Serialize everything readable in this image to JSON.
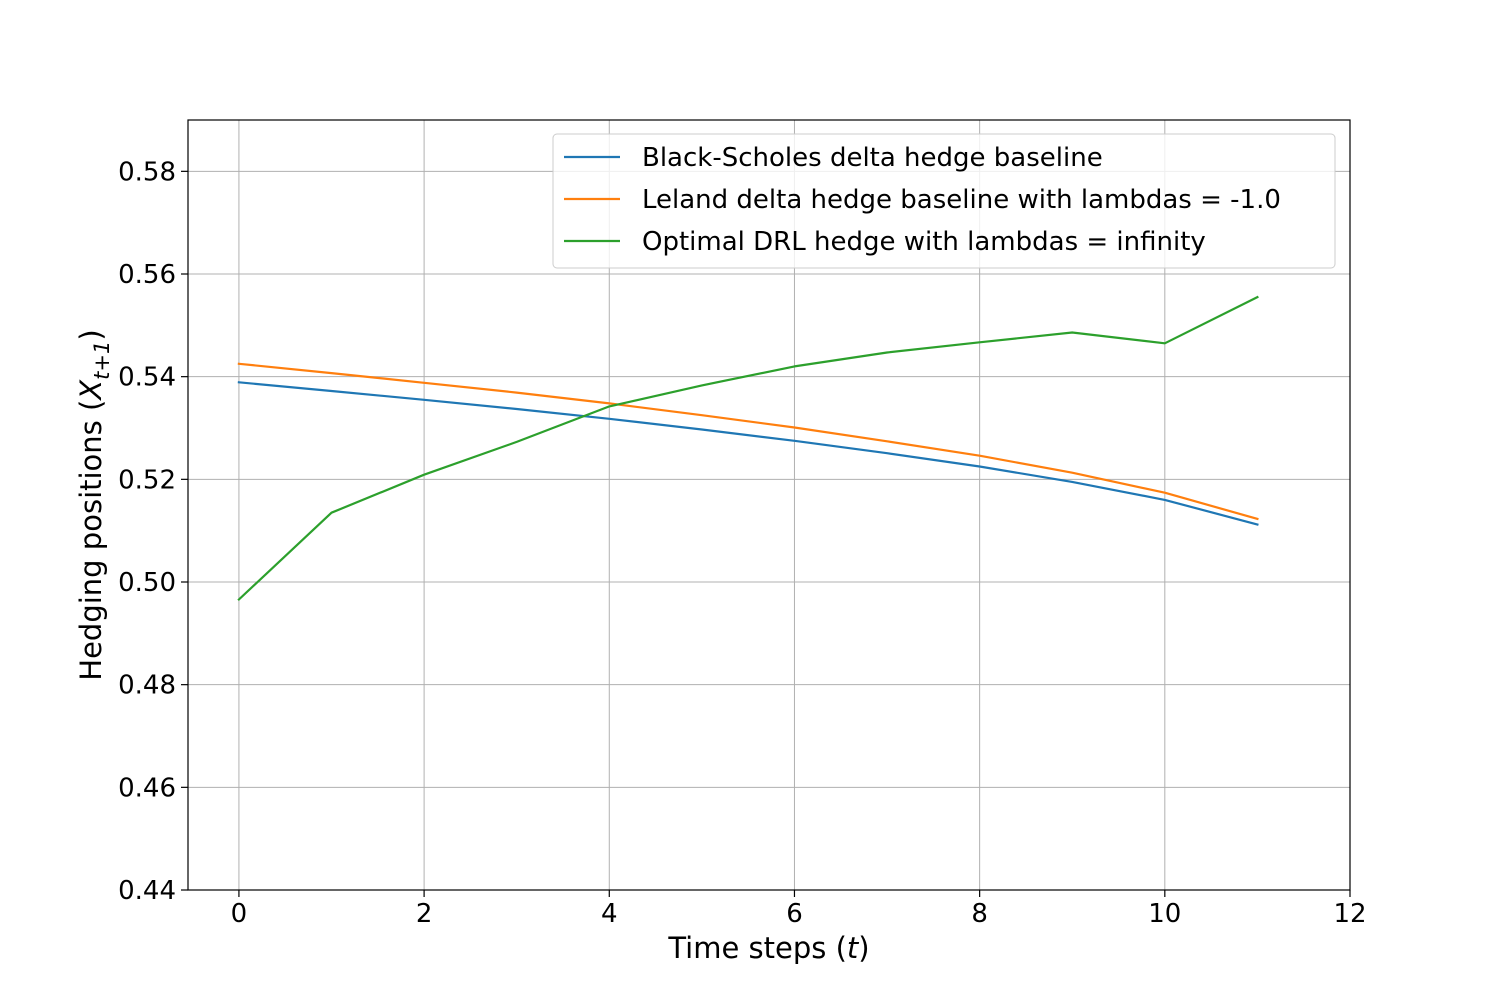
{
  "chart_data": {
    "type": "line",
    "xlabel": "Time steps (t)",
    "ylabel": "Hedging positions (X_{t+1})",
    "xlim": [
      -0.55,
      12
    ],
    "ylim": [
      0.44,
      0.59
    ],
    "xticks": [
      0,
      2,
      4,
      6,
      8,
      10,
      12
    ],
    "yticks": [
      0.44,
      0.46,
      0.48,
      0.5,
      0.52,
      0.54,
      0.56,
      0.58
    ],
    "xtick_labels": [
      "0",
      "2",
      "4",
      "6",
      "8",
      "10",
      "12"
    ],
    "ytick_labels": [
      "0.44",
      "0.46",
      "0.48",
      "0.50",
      "0.52",
      "0.54",
      "0.56",
      "0.58"
    ],
    "grid": true,
    "legend_position": "top-right",
    "x": [
      0,
      1,
      2,
      3,
      4,
      5,
      6,
      7,
      8,
      9,
      10,
      11
    ],
    "series": [
      {
        "name": "Black-Scholes delta hedge baseline",
        "color": "#1f77b4",
        "values": [
          0.5389,
          0.5372,
          0.5355,
          0.5337,
          0.5318,
          0.5297,
          0.5275,
          0.5251,
          0.5225,
          0.5195,
          0.516,
          0.5112
        ]
      },
      {
        "name": "Leland delta hedge baseline with lambdas = -1.0",
        "color": "#ff7f0e",
        "values": [
          0.5425,
          0.5407,
          0.5388,
          0.5369,
          0.5348,
          0.5325,
          0.5301,
          0.5274,
          0.5246,
          0.5213,
          0.5174,
          0.5123
        ]
      },
      {
        "name": "Optimal DRL hedge with lambdas = infinity",
        "color": "#2ca02c",
        "values": [
          0.4966,
          0.5135,
          0.5209,
          0.5273,
          0.5342,
          0.5383,
          0.542,
          0.5447,
          0.5467,
          0.5486,
          0.5465,
          0.5555
        ]
      }
    ]
  }
}
